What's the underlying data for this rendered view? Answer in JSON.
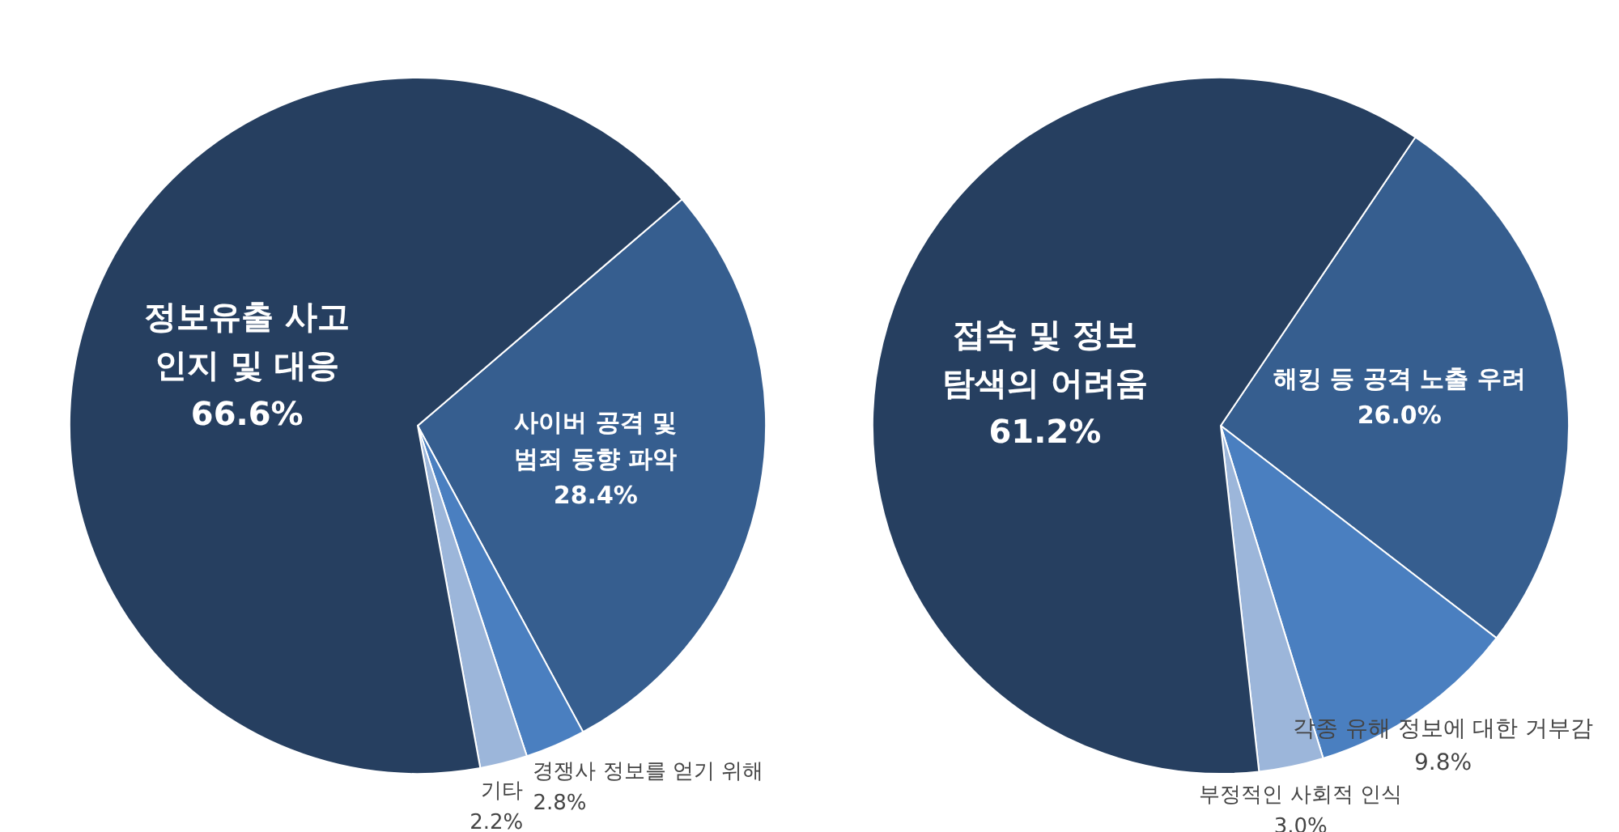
{
  "chart_data": [
    {
      "type": "pie",
      "categories": [
        "사이버 공격 및\n범죄 동향 파악",
        "경쟁사 정보를 얻기 위해",
        "기타",
        "정보유출 사고\n인지 및 대응"
      ],
      "values": [
        28.4,
        2.8,
        2.2,
        66.6
      ],
      "value_labels": [
        "28.4%",
        "2.8%",
        "2.2%",
        "66.6%"
      ],
      "colors": [
        "#365e8f",
        "#4a7fc0",
        "#9cb6da",
        "#263f60"
      ]
    },
    {
      "type": "pie",
      "categories": [
        "해킹 등 공격 노출 우려",
        "각종 유해 정보에 대한 거부감",
        "부정적인 사회적 인식",
        "접속 및 정보\n탐색의 어려움"
      ],
      "values": [
        26.0,
        9.8,
        3.0,
        61.2
      ],
      "value_labels": [
        "26.0%",
        "9.8%",
        "3.0%",
        "61.2%"
      ],
      "colors": [
        "#365e8f",
        "#4a7fc0",
        "#9cb6da",
        "#263f60"
      ]
    }
  ]
}
